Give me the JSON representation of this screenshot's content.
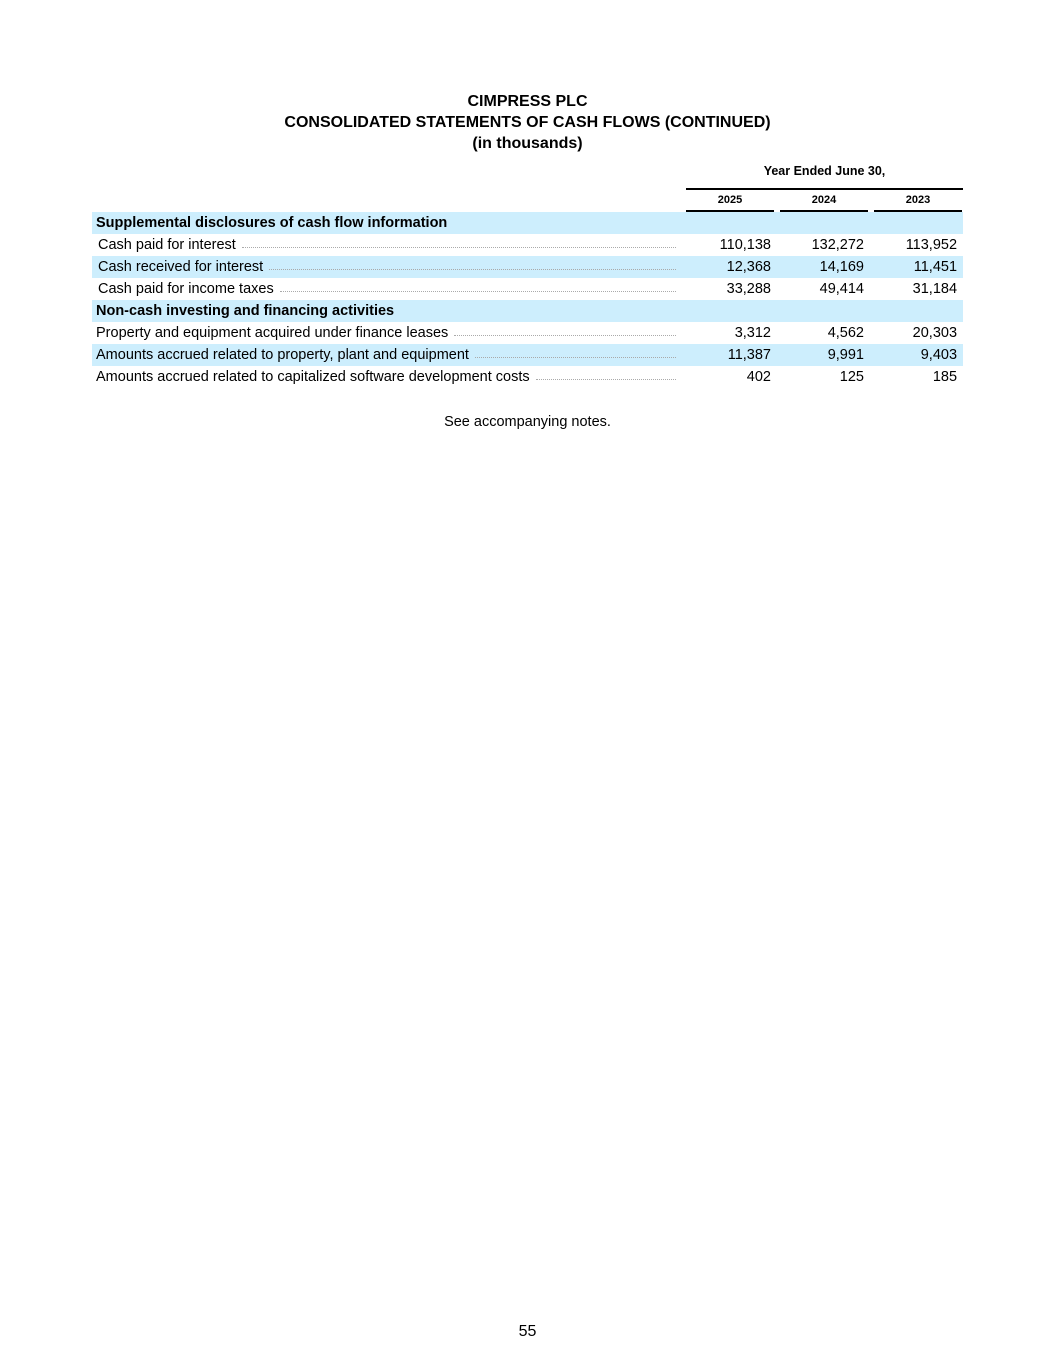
{
  "header": {
    "company": "CIMPRESS PLC",
    "statement": "CONSOLIDATED STATEMENTS OF CASH FLOWS (CONTINUED)",
    "units": "(in thousands)"
  },
  "period_header": "Year Ended June 30,",
  "years": [
    "2025",
    "2024",
    "2023"
  ],
  "rows": [
    {
      "type": "section",
      "label": "Supplemental disclosures of cash flow information"
    },
    {
      "type": "line",
      "label": "Cash paid for interest",
      "values": [
        "110,138",
        "132,272",
        "113,952"
      ]
    },
    {
      "type": "line",
      "label": "Cash received for interest",
      "values": [
        "12,368",
        "14,169",
        "11,451"
      ]
    },
    {
      "type": "line",
      "label": "Cash paid for income taxes",
      "values": [
        "33,288",
        "49,414",
        "31,184"
      ]
    },
    {
      "type": "section",
      "label": "Non-cash investing and financing activities"
    },
    {
      "type": "line",
      "label": "Property and equipment acquired under finance leases",
      "values": [
        "3,312",
        "4,562",
        "20,303"
      ]
    },
    {
      "type": "line",
      "label": "Amounts accrued related to property, plant and equipment",
      "values": [
        "11,387",
        "9,991",
        "9,403"
      ]
    },
    {
      "type": "line",
      "label": "Amounts accrued related to capitalized software development costs",
      "values": [
        "402",
        "125",
        "185"
      ]
    }
  ],
  "footer_note": "See accompanying notes.",
  "page_number": "55"
}
